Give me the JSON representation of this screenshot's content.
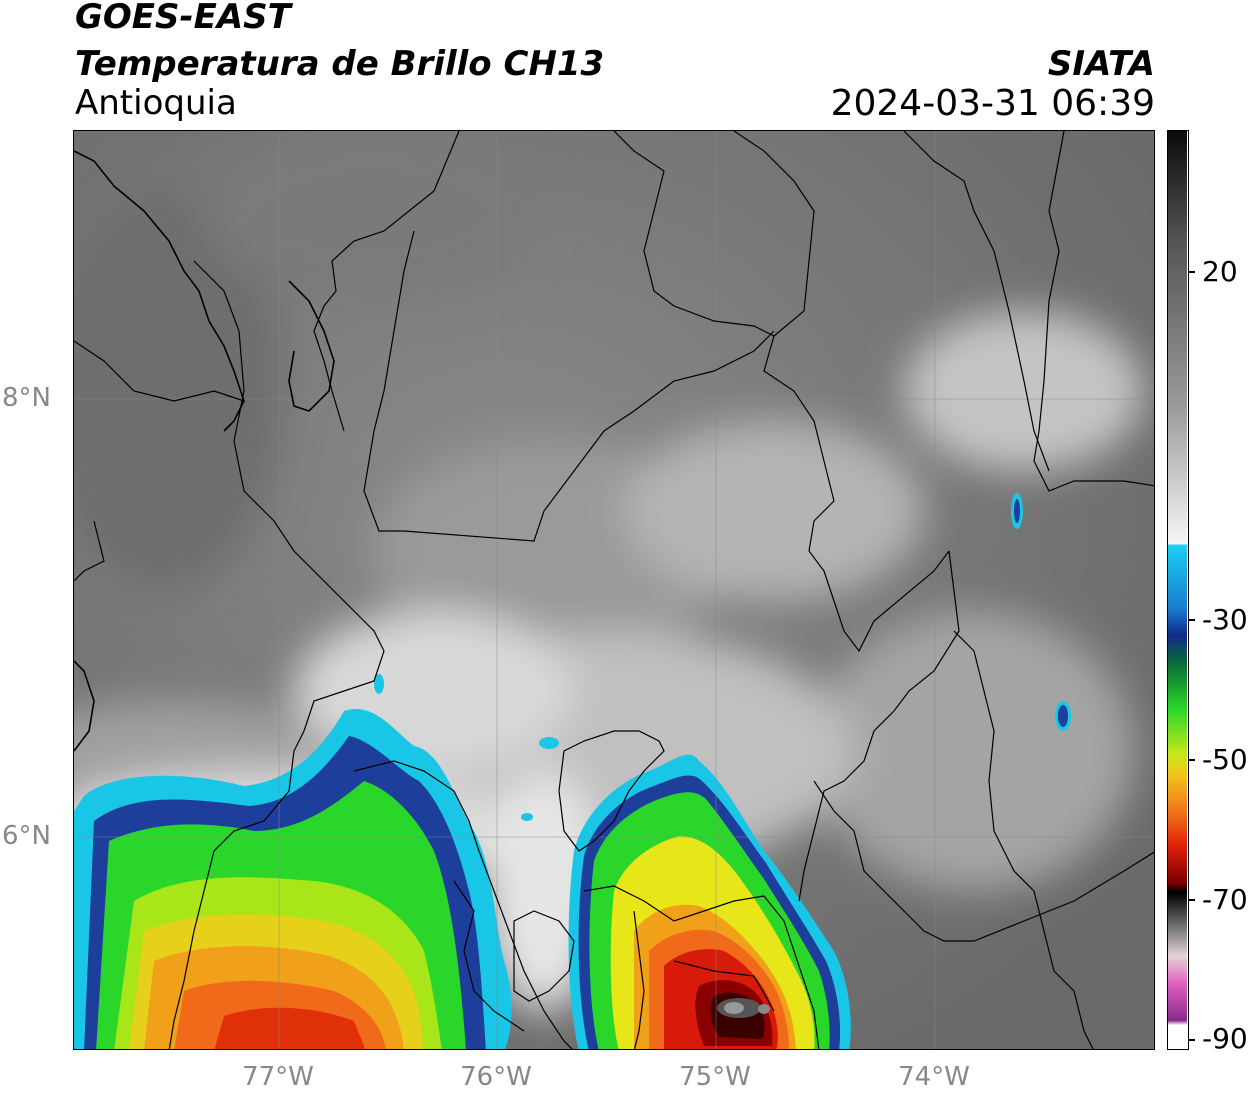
{
  "header": {
    "satellite": "GOES-EAST",
    "product": "Temperatura de Brillo CH13",
    "region": "Antioquia",
    "agency": "SIATA",
    "datetime": "2024-03-31 06:39"
  },
  "map": {
    "lat_labels": [
      "8°N",
      "6°N"
    ],
    "lon_labels": [
      "77°W",
      "76°W",
      "75°W",
      "74°W"
    ],
    "colors": {
      "warm_cloud_gray": "#6e6e6e",
      "light_gray": "#c8c8c8",
      "cyan": "#19c6e6",
      "blue": "#1e3e9c",
      "green": "#2ad62a",
      "yellow": "#e6e619",
      "orange": "#f07a19",
      "red": "#d81a0a",
      "dark_red": "#5a0000",
      "black": "#111111"
    }
  },
  "colorbar": {
    "labels": [
      "20",
      "-30",
      "-50",
      "-70",
      "-90"
    ],
    "units": ""
  }
}
